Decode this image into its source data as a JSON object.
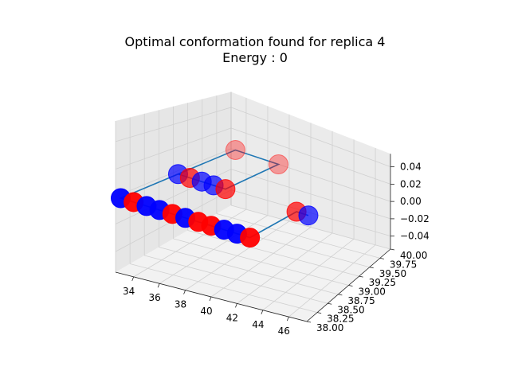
{
  "chart_data": {
    "type": "scatter3d",
    "title": "Optimal conformation found for replica 4",
    "subtitle": "Energy : 0",
    "colors": {
      "H": "#ff0000",
      "P": "#0000ff",
      "line": "#1f77b4"
    },
    "xlim": [
      32.6,
      47.4
    ],
    "ylim": [
      38.0,
      40.0
    ],
    "zlim": [
      -0.055,
      0.055
    ],
    "x_ticks": [
      "34",
      "36",
      "38",
      "40",
      "42",
      "44",
      "46"
    ],
    "y_ticks": [
      "38.00",
      "38.25",
      "38.50",
      "38.75",
      "39.00",
      "39.25",
      "39.50",
      "39.75",
      "40.00"
    ],
    "z_ticks": [
      "−0.04",
      "−0.02",
      "0.00",
      "0.02",
      "0.04"
    ],
    "residues": [
      {
        "x": 33,
        "y": 39,
        "z": 0,
        "type": "P"
      },
      {
        "x": 34,
        "y": 39,
        "z": 0,
        "type": "H"
      },
      {
        "x": 35,
        "y": 39,
        "z": 0,
        "type": "P"
      },
      {
        "x": 36,
        "y": 39,
        "z": 0,
        "type": "P"
      },
      {
        "x": 37,
        "y": 39,
        "z": 0,
        "type": "H"
      },
      {
        "x": 37,
        "y": 40,
        "z": 0,
        "type": "H"
      },
      {
        "x": 33,
        "y": 40,
        "z": 0,
        "type": "H"
      },
      {
        "x": 33,
        "y": 38,
        "z": 0,
        "type": "P"
      },
      {
        "x": 34,
        "y": 38,
        "z": 0,
        "type": "H"
      },
      {
        "x": 35,
        "y": 38,
        "z": 0,
        "type": "P"
      },
      {
        "x": 36,
        "y": 38,
        "z": 0,
        "type": "P"
      },
      {
        "x": 37,
        "y": 38,
        "z": 0,
        "type": "H"
      },
      {
        "x": 38,
        "y": 38,
        "z": 0,
        "type": "P"
      },
      {
        "x": 39,
        "y": 38,
        "z": 0,
        "type": "H"
      },
      {
        "x": 40,
        "y": 38,
        "z": 0,
        "type": "H"
      },
      {
        "x": 41,
        "y": 38,
        "z": 0,
        "type": "P"
      },
      {
        "x": 42,
        "y": 38,
        "z": 0,
        "type": "P"
      },
      {
        "x": 43,
        "y": 38,
        "z": 0,
        "type": "H"
      },
      {
        "x": 43,
        "y": 39,
        "z": 0,
        "type": "H"
      },
      {
        "x": 44,
        "y": 39,
        "z": 0,
        "type": "P"
      }
    ],
    "grid": true
  }
}
